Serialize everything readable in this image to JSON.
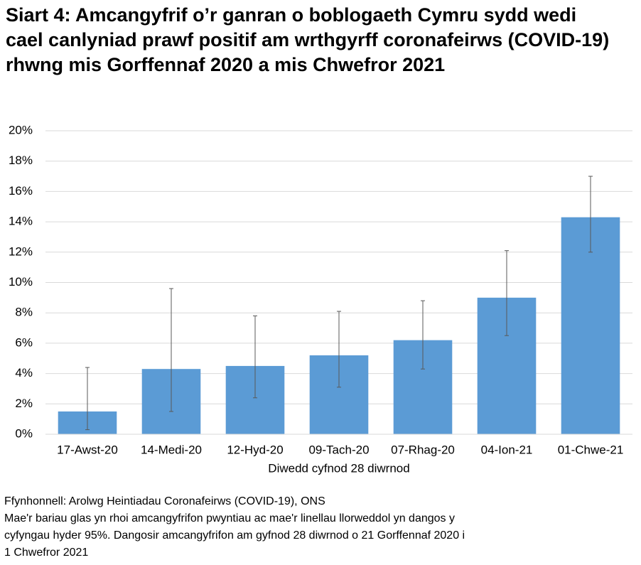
{
  "chart_data": {
    "type": "bar",
    "title": "Siart 4: Amcangyfrif o’r ganran o boblogaeth Cymru sydd wedi cael canlyniad prawf positif am wrthgyrff coronafeirws (COVID-19) rhwng mis Gorffennaf 2020 a mis Chwefror 2021",
    "categories": [
      "17-Awst-20",
      "14-Medi-20",
      "12-Hyd-20",
      "09-Tach-20",
      "07-Rhag-20",
      "04-Ion-21",
      "01-Chwe-21"
    ],
    "values": [
      1.5,
      4.3,
      4.5,
      5.2,
      6.2,
      9.0,
      14.3
    ],
    "ci_lower": [
      0.3,
      1.5,
      2.4,
      3.1,
      4.3,
      6.5,
      12.0
    ],
    "ci_upper": [
      4.4,
      9.6,
      7.8,
      8.1,
      8.8,
      12.1,
      17.0
    ],
    "color": "#5b9bd5",
    "x_label": "Diwedd cyfnod 28 diwrnod",
    "ylim": [
      0,
      20
    ],
    "yticks": [
      {
        "value": 0,
        "label": "0%"
      },
      {
        "value": 2,
        "label": "2%"
      },
      {
        "value": 4,
        "label": "4%"
      },
      {
        "value": 6,
        "label": "6%"
      },
      {
        "value": 8,
        "label": "8%"
      },
      {
        "value": 10,
        "label": "10%"
      },
      {
        "value": 12,
        "label": "12%"
      },
      {
        "value": 14,
        "label": "14%"
      },
      {
        "value": 16,
        "label": "16%"
      },
      {
        "value": 18,
        "label": "18%"
      },
      {
        "value": 20,
        "label": "20%"
      }
    ],
    "grid": true,
    "source": "Ffynhonnell: Arolwg Heintiadau Coronafeirws (COVID-19), ONS",
    "note_lines": [
      "Mae'r bariau glas yn rhoi amcangyfrifon pwyntiau ac mae'r linellau llorweddol yn dangos y",
      "cyfyngau hyder 95%. Dangosir amcangyfrifon am gyfnod 28 diwrnod o 21 Gorffennaf 2020 i",
      "1 Chwefror 2021"
    ]
  }
}
